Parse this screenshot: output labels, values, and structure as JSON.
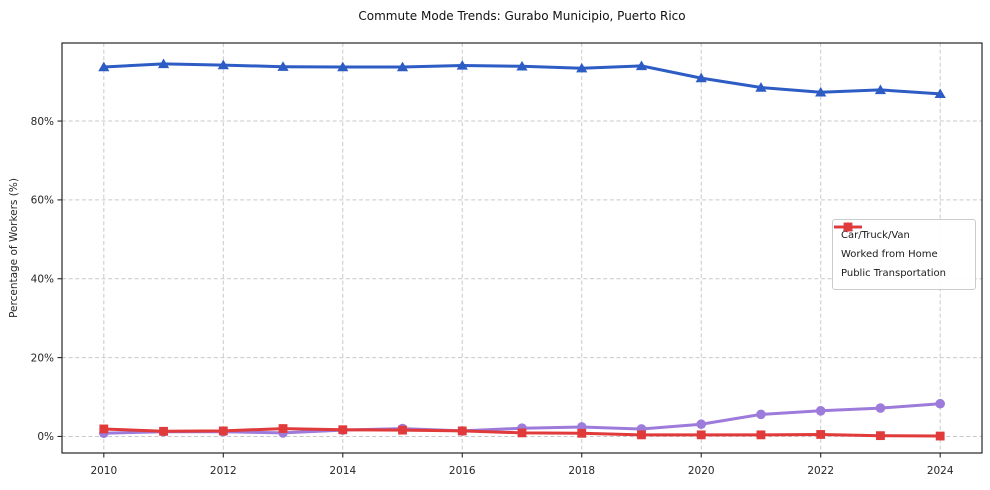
{
  "chart_data": {
    "type": "line",
    "title": "Commute Mode Trends: Gurabo Municipio, Puerto Rico",
    "xlabel": "",
    "ylabel": "Percentage of Workers (%)",
    "x": [
      2010,
      2011,
      2012,
      2013,
      2014,
      2015,
      2016,
      2017,
      2018,
      2019,
      2020,
      2021,
      2022,
      2023,
      2024
    ],
    "series": [
      {
        "name": "Car/Truck/Van",
        "color": "#2d5cc5",
        "marker": "triangle",
        "values": [
          93.7,
          94.5,
          94.2,
          93.8,
          93.7,
          93.7,
          94.1,
          93.9,
          93.4,
          94.0,
          90.9,
          88.5,
          87.3,
          87.9,
          86.9
        ]
      },
      {
        "name": "Worked from Home",
        "color": "#9d7bdb",
        "marker": "circle",
        "values": [
          0.8,
          1.2,
          1.2,
          0.9,
          1.6,
          2.0,
          1.4,
          2.1,
          2.4,
          1.9,
          3.1,
          5.6,
          6.5,
          7.2,
          8.3
        ]
      },
      {
        "name": "Public Transportation",
        "color": "#e03a3a",
        "marker": "square",
        "values": [
          1.9,
          1.3,
          1.4,
          2.0,
          1.7,
          1.6,
          1.4,
          0.9,
          0.8,
          0.4,
          0.4,
          0.4,
          0.5,
          0.2,
          0.1
        ]
      }
    ],
    "xticks": [
      2010,
      2012,
      2014,
      2016,
      2018,
      2020,
      2022,
      2024
    ],
    "yticks": [
      0,
      20,
      40,
      60,
      80
    ],
    "ytick_labels": [
      "0%",
      "20%",
      "40%",
      "60%",
      "80%"
    ],
    "xlim": [
      2009.3,
      2024.7
    ],
    "ylim": [
      -4.2,
      99.8
    ],
    "grid": true,
    "legend_position": "center-right",
    "grid_color": "#c9c9c9",
    "spine_color": "#262626",
    "background": "#ffffff"
  }
}
